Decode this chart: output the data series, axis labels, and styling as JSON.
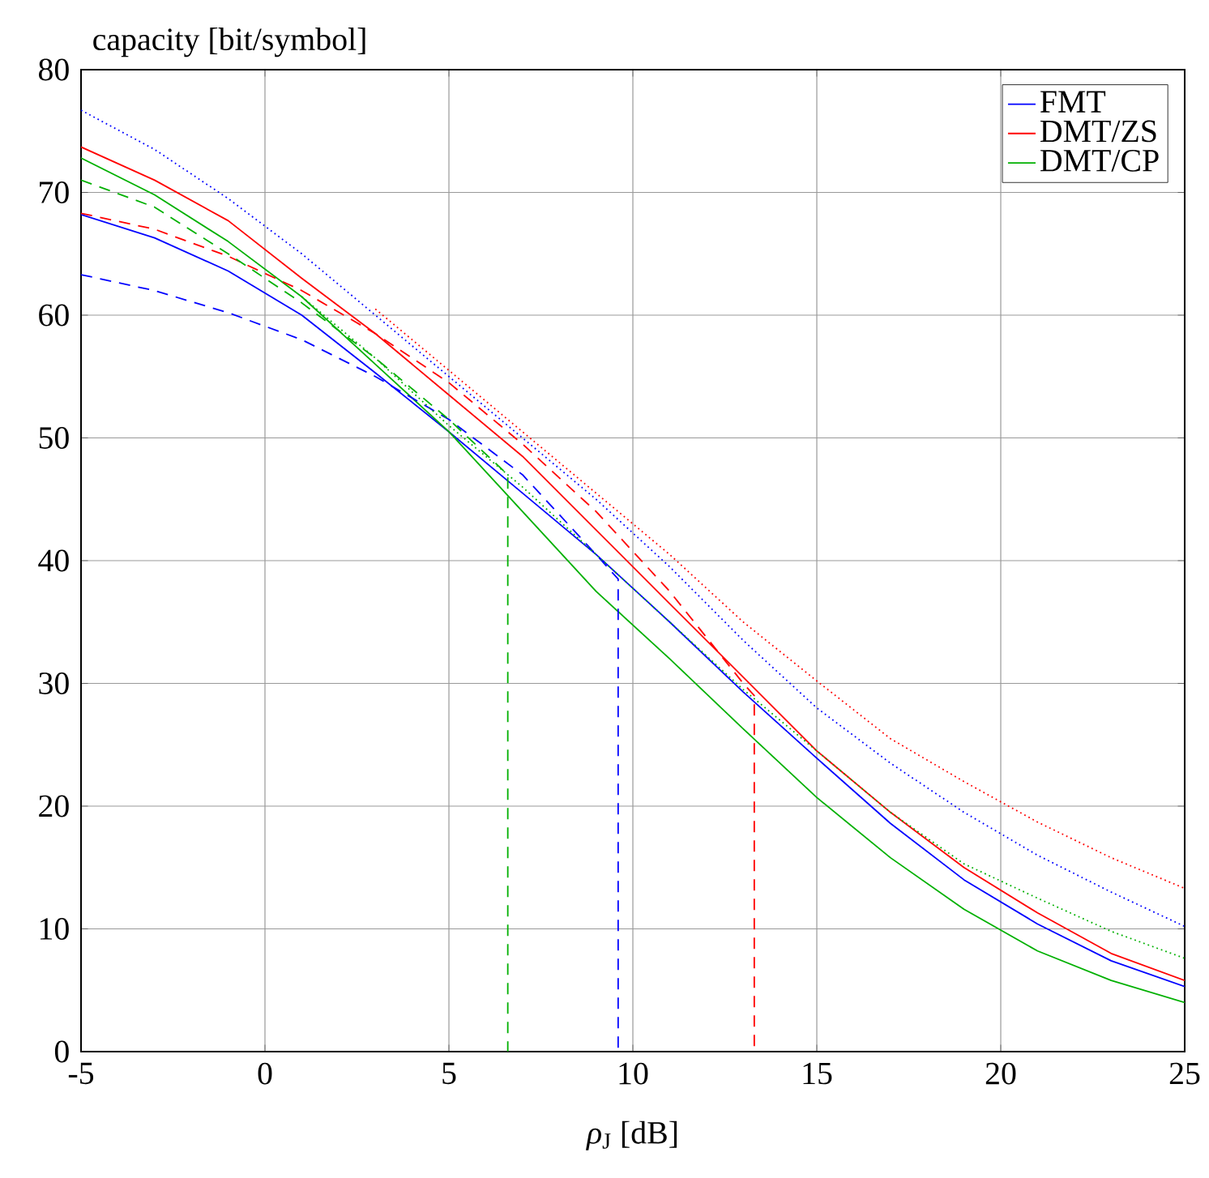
{
  "chart_data": {
    "type": "line",
    "xlabel": "*ρ*$_{J}$ [dB]",
    "ylabel": "capacity [bit/symbol]",
    "xlim": [
      -5,
      25
    ],
    "ylim": [
      0,
      80
    ],
    "xticks": [
      -5,
      0,
      5,
      10,
      15,
      20,
      25
    ],
    "yticks": [
      0,
      10,
      20,
      30,
      40,
      50,
      60,
      70,
      80
    ],
    "grid": true,
    "legend": "top right",
    "marker": "none",
    "series": [
      {
        "name": "FMT",
        "color": "#0000ff",
        "line_style": "solid",
        "x": [
          -5,
          -3,
          -1,
          1,
          3,
          5,
          7,
          9,
          11,
          13,
          15,
          17,
          19,
          21,
          23,
          25
        ],
        "values": [
          68.2,
          66.3,
          63.6,
          60,
          55.3,
          50.5,
          45.5,
          40.5,
          35,
          29.3,
          23.9,
          18.6,
          14,
          10.4,
          7.4,
          5.3
        ]
      },
      {
        "name": "DMT/ZS",
        "color": "#ff0000",
        "line_style": "solid",
        "x": [
          -5,
          -3,
          -1,
          1,
          3,
          5,
          7,
          9,
          11,
          13,
          15,
          17,
          19,
          21,
          23,
          25
        ],
        "values": [
          73.7,
          71,
          67.7,
          63,
          58.5,
          53.5,
          48.5,
          42.5,
          36.5,
          30.5,
          24.5,
          19.5,
          15,
          11.3,
          8,
          5.8
        ]
      },
      {
        "name": "DMT/CP",
        "color": "#00b000",
        "line_style": "solid",
        "x": [
          -5,
          -3,
          -1,
          1,
          3,
          5,
          7,
          9,
          11,
          13,
          15,
          17,
          19,
          21,
          23,
          25
        ],
        "values": [
          72.8,
          69.8,
          66,
          61.5,
          56,
          50.5,
          44,
          37.5,
          32,
          26.3,
          20.7,
          15.8,
          11.6,
          8.2,
          5.8,
          4
        ]
      },
      {
        "color": "#0000ff",
        "line_style": "dashed",
        "x": [
          -5,
          -3,
          -1,
          1,
          3,
          5,
          7,
          9,
          9.6,
          9.6
        ],
        "values": [
          63.3,
          62,
          60.2,
          58,
          55,
          51.5,
          47,
          40.5,
          38.5,
          0
        ]
      },
      {
        "color": "#ff0000",
        "line_style": "dashed",
        "x": [
          -5,
          -3,
          -1,
          1,
          3,
          5,
          7,
          9,
          11,
          13,
          13.3,
          13.3
        ],
        "values": [
          68.3,
          67,
          64.8,
          62,
          58.5,
          54.5,
          49.5,
          44,
          37.5,
          30,
          29,
          0
        ]
      },
      {
        "color": "#00b000",
        "line_style": "dashed",
        "x": [
          -5,
          -3,
          -1,
          1,
          3,
          5,
          6.6,
          6.6
        ],
        "values": [
          71,
          68.8,
          65,
          61,
          56.5,
          51.5,
          47,
          0
        ]
      },
      {
        "color": "#0000ff",
        "line_style": "dotted",
        "x": [
          -5,
          -3,
          -1,
          1,
          3,
          5,
          7,
          9,
          11,
          13,
          15,
          17,
          19,
          21,
          23,
          25
        ],
        "values": [
          76.7,
          73.5,
          69.5,
          65,
          60,
          55,
          50,
          45,
          39.5,
          33.5,
          28,
          23.5,
          19.5,
          16,
          13,
          10.2
        ]
      },
      {
        "color": "#ff0000",
        "line_style": "dotted",
        "x": [
          3,
          5,
          7,
          9,
          11,
          13,
          15,
          17,
          19,
          21,
          23,
          25
        ],
        "values": [
          60.5,
          55.5,
          50.5,
          45.5,
          40.5,
          35,
          30.2,
          25.5,
          22,
          18.7,
          15.8,
          13.3
        ]
      },
      {
        "color": "#00b000",
        "line_style": "dotted",
        "x": [
          1,
          3,
          5,
          7,
          9,
          11,
          13,
          15,
          17,
          19,
          21,
          23,
          25
        ],
        "values": [
          61.5,
          56.5,
          51,
          46,
          40.5,
          35,
          29.5,
          24.5,
          19.5,
          15.3,
          12.5,
          9.8,
          7.6
        ]
      }
    ]
  }
}
